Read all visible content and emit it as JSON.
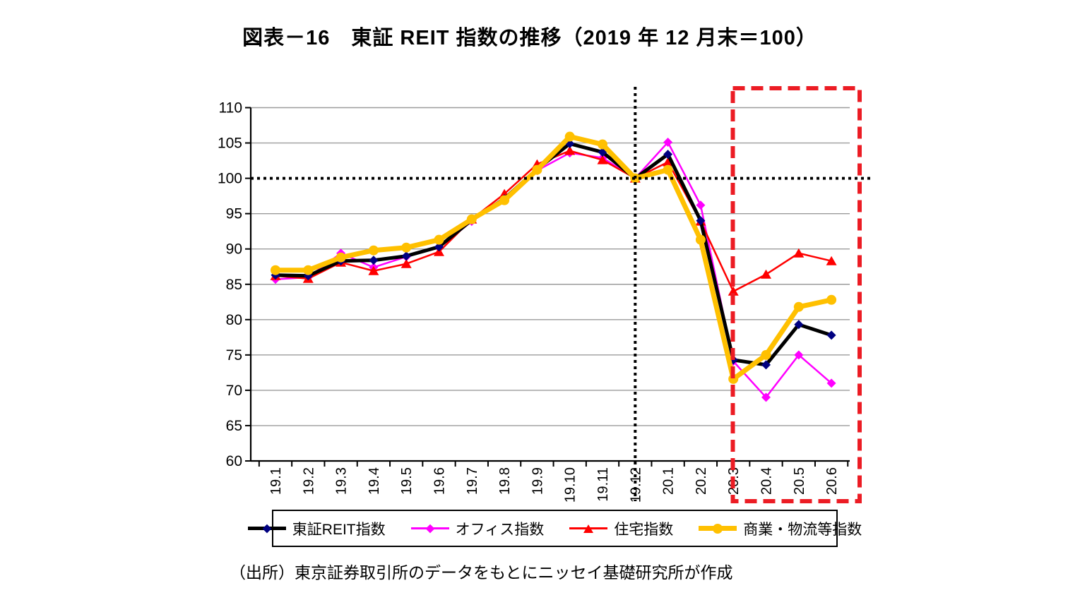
{
  "title": "図表－16　東証 REIT 指数の推移（2019 年 12 月末＝100）",
  "source": "（出所）東京証券取引所のデータをもとにニッセイ基礎研究所が作成",
  "colors": {
    "grid": "#9b9b9b",
    "axis": "#000000",
    "baseline_dotted": "#000000",
    "highlight_box": "#EC1C24"
  },
  "chart_data": {
    "type": "line",
    "title": "図表－16　東証 REIT 指数の推移（2019 年 12 月末＝100）",
    "xlabel": "",
    "ylabel": "",
    "ylim": [
      60,
      110
    ],
    "yticks": [
      60,
      65,
      70,
      75,
      80,
      85,
      90,
      95,
      100,
      105,
      110
    ],
    "grid": true,
    "legend_position": "bottom",
    "baseline_value": 100,
    "baseline_category": "19.12",
    "highlight_box_categories": [
      "20.3",
      "20.6"
    ],
    "categories": [
      "19.1",
      "19.2",
      "19.3",
      "19.4",
      "19.5",
      "19.6",
      "19.7",
      "19.8",
      "19.9",
      "19.10",
      "19.11",
      "19.12",
      "20.1",
      "20.2",
      "20.3",
      "20.4",
      "20.5",
      "20.6"
    ],
    "series": [
      {
        "name": "東証REIT指数",
        "key": "tse-reit",
        "color": "#000000",
        "marker_color": "#000080",
        "marker": "diamond",
        "line_width": 5,
        "values": [
          86.3,
          86.2,
          88.3,
          88.4,
          89.0,
          90.3,
          94.1,
          97.1,
          101.3,
          104.9,
          103.7,
          100.0,
          103.4,
          94.0,
          74.3,
          73.6,
          79.3,
          77.8
        ]
      },
      {
        "name": "オフィス指数",
        "key": "office",
        "color": "#FF00FF",
        "marker_color": "#FF00FF",
        "marker": "diamond",
        "line_width": 2.5,
        "values": [
          85.7,
          86.0,
          89.4,
          87.4,
          88.9,
          90.2,
          93.9,
          97.0,
          101.1,
          103.6,
          102.9,
          100.0,
          105.1,
          96.2,
          74.1,
          69.0,
          75.0,
          71.0
        ]
      },
      {
        "name": "住宅指数",
        "key": "residential",
        "color": "#FF0000",
        "marker_color": "#FF0000",
        "marker": "triangle",
        "line_width": 2.5,
        "values": [
          86.2,
          85.8,
          88.1,
          86.9,
          87.9,
          89.6,
          94.2,
          97.8,
          102.0,
          103.9,
          102.6,
          100.0,
          102.3,
          93.9,
          84.0,
          86.4,
          89.4,
          88.3
        ]
      },
      {
        "name": "商業・物流等指数",
        "key": "commercial-logistics",
        "color": "#FFC000",
        "marker_color": "#FFC000",
        "marker": "circle",
        "line_width": 7,
        "values": [
          87.0,
          87.0,
          88.8,
          89.8,
          90.2,
          91.3,
          94.2,
          96.9,
          101.2,
          105.9,
          104.8,
          100.0,
          101.2,
          91.3,
          71.6,
          75.0,
          81.8,
          82.8
        ]
      }
    ]
  }
}
